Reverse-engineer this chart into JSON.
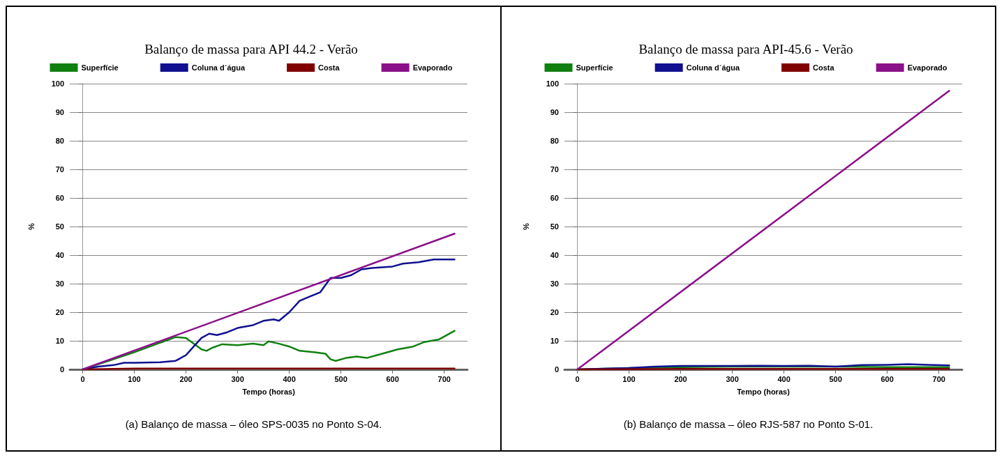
{
  "chart_data": [
    {
      "type": "line",
      "title": "Balanço de massa para API 44.2 - Verão",
      "xlabel": "Tempo (horas)",
      "ylabel": "%",
      "xlim": [
        -25,
        745
      ],
      "xticks": [
        0,
        100,
        200,
        300,
        400,
        500,
        600,
        700
      ],
      "ylim": [
        0,
        100
      ],
      "yticks": [
        0,
        10,
        20,
        30,
        40,
        50,
        60,
        70,
        80,
        90,
        100
      ],
      "grid": "y",
      "legend": "top",
      "marker": "none",
      "line_style": "solid",
      "annotations": [
        "(a) Balanço de massa – óleo SPS-0035 no Ponto S-04."
      ],
      "series": [
        {
          "name": "Superfície",
          "color": "#108010",
          "x": [
            0,
            20,
            50,
            80,
            100,
            130,
            160,
            180,
            200,
            215,
            230,
            240,
            250,
            270,
            300,
            330,
            350,
            360,
            380,
            400,
            420,
            450,
            470,
            480,
            490,
            510,
            530,
            550,
            580,
            610,
            640,
            660,
            690,
            700,
            720
          ],
          "values": [
            0,
            1.2,
            3,
            4.8,
            6,
            8,
            10,
            11.3,
            11,
            9,
            7,
            6.5,
            7.5,
            8.8,
            8.5,
            9,
            8.5,
            9.8,
            9,
            8,
            6.5,
            6,
            5.5,
            3.5,
            3,
            4,
            4.5,
            4,
            5.5,
            7,
            8,
            9.5,
            10.5,
            11.5,
            13.5
          ]
        },
        {
          "name": "Coluna d´água",
          "color": "#101090",
          "x": [
            0,
            30,
            60,
            80,
            100,
            150,
            180,
            200,
            215,
            230,
            245,
            260,
            280,
            300,
            330,
            350,
            370,
            380,
            400,
            420,
            440,
            460,
            480,
            500,
            520,
            540,
            560,
            600,
            620,
            650,
            680,
            700,
            720
          ],
          "values": [
            0,
            1,
            1.5,
            2.3,
            2.3,
            2.5,
            3,
            5,
            8,
            11,
            12.5,
            12,
            13,
            14.5,
            15.5,
            17,
            17.5,
            17,
            20,
            24,
            25.5,
            27,
            32,
            32,
            33,
            35,
            35.5,
            36,
            37,
            37.5,
            38.5,
            38.5,
            38.5
          ]
        },
        {
          "name": "Costa",
          "color": "#800000",
          "x": [
            0,
            100,
            200,
            300,
            400,
            500,
            600,
            720
          ],
          "values": [
            0,
            0.3,
            0.3,
            0.3,
            0.3,
            0.3,
            0.3,
            0.3
          ]
        },
        {
          "name": "Evaporado",
          "color": "#8a108a",
          "x": [
            0,
            720
          ],
          "values": [
            0,
            47.5
          ]
        }
      ]
    },
    {
      "type": "line",
      "title": "Balanço de massa para API-45.6 - Verão",
      "xlabel": "Tempo (horas)",
      "ylabel": "%",
      "xlim": [
        -25,
        745
      ],
      "xticks": [
        0,
        100,
        200,
        300,
        400,
        500,
        600,
        700
      ],
      "ylim": [
        0,
        100
      ],
      "yticks": [
        0,
        10,
        20,
        30,
        40,
        50,
        60,
        70,
        80,
        90,
        100
      ],
      "grid": "y",
      "legend": "top",
      "marker": "none",
      "line_style": "solid",
      "annotations": [
        "(b) Balanço de massa – óleo RJS-587 no Ponto S-01."
      ],
      "series": [
        {
          "name": "Superfície",
          "color": "#108010",
          "x": [
            0,
            100,
            200,
            300,
            400,
            500,
            600,
            720
          ],
          "values": [
            0,
            0.5,
            0.8,
            1,
            1,
            1,
            0.8,
            0.8
          ]
        },
        {
          "name": "Coluna d´água",
          "color": "#101090",
          "x": [
            0,
            100,
            150,
            200,
            300,
            350,
            400,
            450,
            500,
            550,
            600,
            640,
            680,
            720
          ],
          "values": [
            0,
            0.5,
            1,
            1.2,
            1.2,
            1.3,
            1.2,
            1.3,
            1,
            1.5,
            1.6,
            1.8,
            1.6,
            1.4
          ]
        },
        {
          "name": "Costa",
          "color": "#800000",
          "x": [
            0,
            200,
            400,
            600,
            720
          ],
          "values": [
            0,
            0.2,
            0.2,
            0.2,
            0.2
          ]
        },
        {
          "name": "Evaporado",
          "color": "#8a108a",
          "x": [
            0,
            720
          ],
          "values": [
            0,
            97.5
          ]
        }
      ]
    }
  ]
}
